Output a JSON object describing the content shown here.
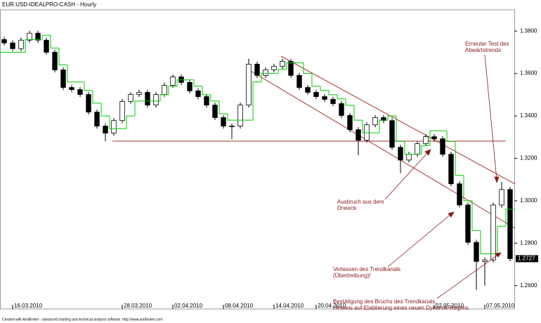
{
  "chart_data": {
    "type": "candlestick",
    "title": "EUR.USD-IDEALPRO-CASH - Hourly",
    "footer": "Created with AmiBroker - advanced charting and technical analysis software. http://www.amibroker.com",
    "xlim": [
      -0.5,
      60.5
    ],
    "xticks": [
      {
        "value": 1,
        "label": "16.03.2010"
      },
      {
        "value": 14,
        "label": "28.03.2010"
      },
      {
        "value": 20,
        "label": "02.04.2010"
      },
      {
        "value": 26,
        "label": "08.04.2010"
      },
      {
        "value": 32,
        "label": "14.04.2010"
      },
      {
        "value": 37,
        "label": "20.04.2010"
      },
      {
        "value": 51,
        "label": "02.05.2010"
      },
      {
        "value": 57,
        "label": "07.05.2010"
      }
    ],
    "ylim": [
      1.249,
      1.39
    ],
    "yticks": [
      {
        "value": 1.26,
        "label": "1.2600"
      },
      {
        "value": 1.28,
        "label": "1.2800"
      },
      {
        "value": 1.3,
        "label": "1.3000"
      },
      {
        "value": 1.32,
        "label": "1.3200"
      },
      {
        "value": 1.34,
        "label": "1.3400"
      },
      {
        "value": 1.36,
        "label": "1.3600"
      },
      {
        "value": 1.38,
        "label": "1.3800"
      }
    ],
    "open": [
      1.376,
      1.3744,
      1.3717,
      1.3757,
      1.379,
      1.3757,
      1.37,
      1.3617,
      1.3534,
      1.3524,
      1.3501,
      1.3418,
      1.3352,
      1.3319,
      1.3378,
      1.3468,
      1.3501,
      1.3511,
      1.3451,
      1.3501,
      1.3544,
      1.3584,
      1.3558,
      1.3518,
      1.3491,
      1.3451,
      1.3392,
      1.3352,
      1.3352,
      1.3451,
      1.3644,
      1.3591,
      1.3617,
      1.3634,
      1.3657,
      1.3591,
      1.3534,
      1.3511,
      1.3491,
      1.3478,
      1.3458,
      1.3402,
      1.3335,
      1.3285,
      1.3358,
      1.3392,
      1.3378,
      1.3252,
      1.3192,
      1.3219,
      1.3269,
      1.3302,
      1.3292,
      1.3219,
      1.308,
      1.298,
      1.2804,
      1.2714,
      1.2721,
      1.298,
      1.3053
    ],
    "high": [
      1.3772,
      1.3756,
      1.3769,
      1.3802,
      1.3802,
      1.3769,
      1.3712,
      1.3629,
      1.3546,
      1.3536,
      1.3513,
      1.343,
      1.3364,
      1.339,
      1.348,
      1.3513,
      1.3523,
      1.3523,
      1.3513,
      1.3556,
      1.3596,
      1.3596,
      1.357,
      1.353,
      1.3503,
      1.3463,
      1.3404,
      1.3364,
      1.3463,
      1.367,
      1.3656,
      1.3629,
      1.3646,
      1.3669,
      1.3669,
      1.3603,
      1.3546,
      1.3523,
      1.3503,
      1.349,
      1.347,
      1.3414,
      1.3347,
      1.337,
      1.3404,
      1.3404,
      1.339,
      1.3264,
      1.3231,
      1.3281,
      1.3314,
      1.3314,
      1.3304,
      1.3231,
      1.3092,
      1.2992,
      1.2816,
      1.2733,
      1.2992,
      1.309,
      1.3065
    ],
    "low": [
      1.3732,
      1.3705,
      1.3705,
      1.3745,
      1.3745,
      1.3688,
      1.3605,
      1.3522,
      1.3512,
      1.3489,
      1.3406,
      1.334,
      1.328,
      1.3307,
      1.3366,
      1.3456,
      1.3489,
      1.3439,
      1.3439,
      1.3489,
      1.3532,
      1.3546,
      1.3506,
      1.3479,
      1.3439,
      1.338,
      1.334,
      1.329,
      1.334,
      1.3439,
      1.3579,
      1.3579,
      1.3605,
      1.3622,
      1.3579,
      1.3522,
      1.3499,
      1.3479,
      1.3466,
      1.3446,
      1.339,
      1.3323,
      1.3215,
      1.3273,
      1.3346,
      1.3366,
      1.324,
      1.313,
      1.318,
      1.3207,
      1.3257,
      1.328,
      1.3207,
      1.3068,
      1.2968,
      1.2792,
      1.258,
      1.26,
      1.2709,
      1.2968,
      1.2715
    ],
    "close": [
      1.3744,
      1.3717,
      1.3757,
      1.379,
      1.3757,
      1.37,
      1.3617,
      1.3534,
      1.3524,
      1.3501,
      1.3418,
      1.3352,
      1.3319,
      1.3378,
      1.3468,
      1.3501,
      1.3511,
      1.3451,
      1.3501,
      1.3544,
      1.3584,
      1.3558,
      1.3518,
      1.3491,
      1.3451,
      1.3392,
      1.3352,
      1.3352,
      1.3451,
      1.3644,
      1.3591,
      1.3617,
      1.3634,
      1.3657,
      1.3591,
      1.3534,
      1.3511,
      1.3491,
      1.3478,
      1.3458,
      1.3402,
      1.3335,
      1.3285,
      1.3358,
      1.3392,
      1.3378,
      1.3252,
      1.3192,
      1.3219,
      1.3269,
      1.3302,
      1.3292,
      1.3219,
      1.308,
      1.298,
      1.2804,
      1.2714,
      1.2721,
      1.298,
      1.3053,
      1.2727
    ],
    "stop_line": {
      "color": "#00cc00",
      "values": [
        1.37,
        1.37,
        1.37,
        1.376,
        1.376,
        1.378,
        1.372,
        1.364,
        1.356,
        1.356,
        1.352,
        1.346,
        1.34,
        1.334,
        1.334,
        1.34,
        1.347,
        1.347,
        1.347,
        1.35,
        1.354,
        1.357,
        1.357,
        1.354,
        1.35,
        1.347,
        1.341,
        1.338,
        1.338,
        1.338,
        1.356,
        1.36,
        1.36,
        1.362,
        1.365,
        1.365,
        1.36,
        1.354,
        1.352,
        1.35,
        1.348,
        1.345,
        1.338,
        1.332,
        1.332,
        1.338,
        1.34,
        1.328,
        1.322,
        1.322,
        1.326,
        1.333,
        1.333,
        1.328,
        1.312,
        1.3,
        1.286,
        1.275,
        1.275,
        1.288,
        1.296
      ]
    },
    "annotations": [
      {
        "lines": [
          "Erneuter Test des",
          "Abwärtstrends"
        ]
      },
      {
        "lines": [
          "Ausbruch aus dem",
          "Dreieck"
        ]
      },
      {
        "lines": [
          "Verlassen des Trendkanals",
          "(Übertreibung)!"
        ]
      },
      {
        "lines": [
          "Bestätigung des Bruchs des Trendkanals,",
          "Hinweis auf Etablierung eines neuen Dynamik-Regims"
        ]
      }
    ]
  }
}
